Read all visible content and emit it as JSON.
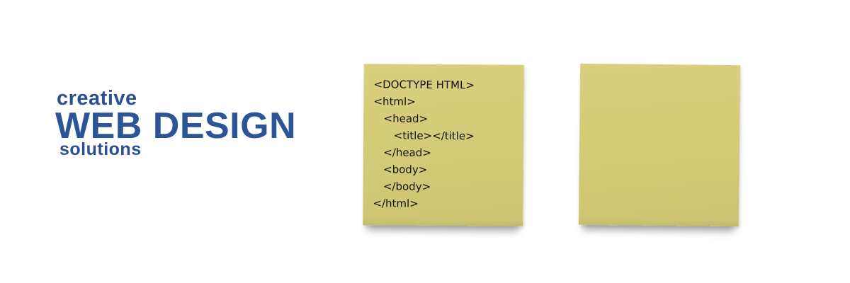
{
  "headline": {
    "line1": "creative",
    "line2": "WEB DESIGN",
    "line3": "solutions"
  },
  "sticky_note_left": {
    "code_lines": [
      "<DOCTYPE HTML>",
      "<html>",
      "   <head>",
      "      <title></title>",
      "   </head>",
      "   <body>",
      "   </body>",
      "</html>"
    ]
  },
  "sticky_note_right": {
    "code_lines": []
  },
  "colors": {
    "brand_blue": "#2a4f93",
    "note_yellow": "#d4cb78",
    "background": "#ffffff"
  }
}
